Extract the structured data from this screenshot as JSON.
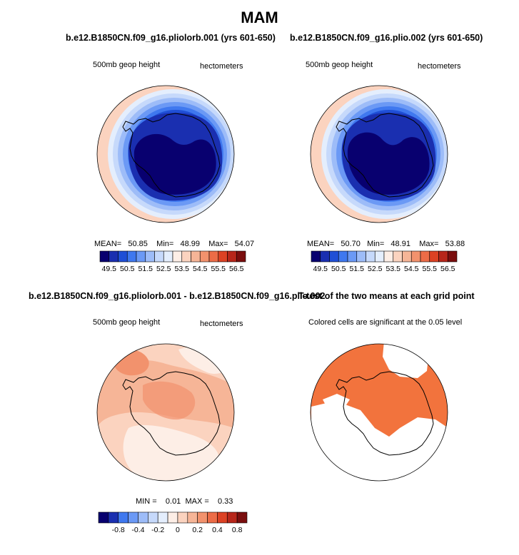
{
  "main_title": "MAM",
  "panel_tl": {
    "title": "b.e12.B1850CN.f09_g16.pliolorb.001 (yrs 601-650)",
    "field": "500mb geop height",
    "units": "hectometers",
    "mean_label": "MEAN=",
    "mean": "50.85",
    "min_label": "Min=",
    "min": "48.99",
    "max_label": "Max=",
    "max": "54.07"
  },
  "panel_tr": {
    "title": "b.e12.B1850CN.f09_g16.plio.002 (yrs 601-650)",
    "field": "500mb geop height",
    "units": "hectometers",
    "mean_label": "MEAN=",
    "mean": "50.70",
    "min_label": "Min=",
    "min": "48.91",
    "max_label": "Max=",
    "max": "53.88"
  },
  "panel_bl": {
    "title": "b.e12.B1850CN.f09_g16.pliolorb.001 - b.e12.B1850CN.f09_g16.plio.002",
    "field": "500mb geop height",
    "units": "hectometers",
    "min_label": "MIN =",
    "min": "0.01",
    "max_label": "MAX =",
    "max": "0.33"
  },
  "panel_br": {
    "title": "T-test of the two means at each grid point",
    "note": "Colored cells are significant at the 0.05 level"
  },
  "colorbar_top": {
    "labels": [
      "49.5",
      "50.5",
      "51.5",
      "52.5",
      "53.5",
      "54.5",
      "55.5",
      "56.5"
    ]
  },
  "colorbar_diff": {
    "labels": [
      "-0.8",
      "-0.4",
      "-0.2",
      "0",
      "0.2",
      "0.4",
      "0.8"
    ]
  },
  "palette": [
    "#08006f",
    "#1a2fb0",
    "#1f4fd6",
    "#3f78ef",
    "#6b99f5",
    "#9dbcf8",
    "#c6d9fb",
    "#e4eefd",
    "#fdeee6",
    "#fbd3bf",
    "#f6b597",
    "#f2926d",
    "#ec6c47",
    "#dc4224",
    "#b7261a",
    "#7a0e0e"
  ]
}
